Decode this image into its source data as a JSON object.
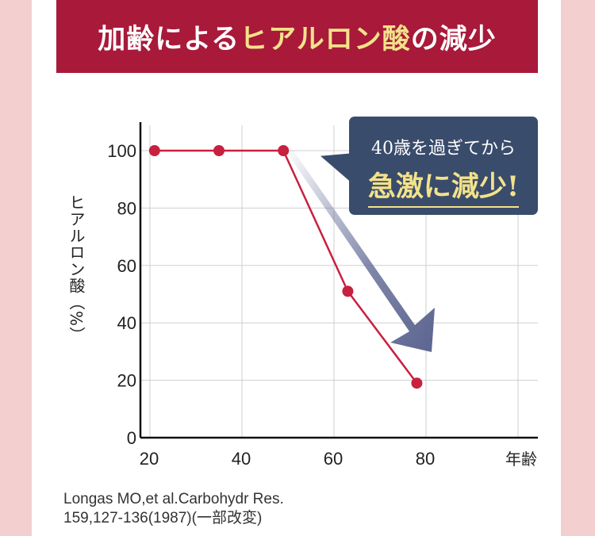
{
  "banner": {
    "part1": "加齢による",
    "part2": "ヒアルロン酸",
    "part3": "の減少"
  },
  "callout": {
    "line1": "40歳を過ぎてから",
    "line2": "急激に減少!"
  },
  "source": {
    "line1": "Longas MO,et al.Carbohydr Res.",
    "line2": "159,127-136(1987)(一部改変)"
  },
  "colors": {
    "banner": "#a8193a",
    "line": "#c8203f",
    "callout": "#3a4c6c",
    "highlight": "#f3e28a",
    "arrow": "#5c6590"
  },
  "chart_data": {
    "type": "line",
    "x": [
      21,
      35,
      49,
      63,
      78
    ],
    "series": [
      {
        "values": [
          100,
          100,
          100,
          51,
          19
        ]
      }
    ],
    "ylabel": "ヒアルロン酸（%）",
    "xlabel": "年齢",
    "xticks": [
      "20",
      "40",
      "60",
      "80"
    ],
    "xtick_values": [
      20,
      40,
      60,
      80
    ],
    "yticks": [
      "0",
      "20",
      "40",
      "60",
      "80",
      "100"
    ],
    "ytick_values": [
      0,
      20,
      40,
      60,
      80,
      100
    ],
    "xlim": [
      20,
      100
    ],
    "ylim": [
      0,
      110
    ],
    "grid": true,
    "legend": "none"
  }
}
